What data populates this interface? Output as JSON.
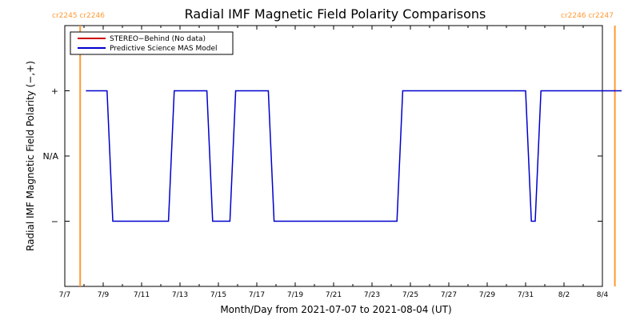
{
  "chart_data": {
    "type": "line",
    "title": "Radial IMF Magnetic Field Polarity Comparisons",
    "xlabel": "Month/Day from 2021-07-07 to 2021-08-04 (UT)",
    "ylabel": "Radial IMF Magnetic Field Polarity (−,+)",
    "x_tick_labels": [
      "7/7",
      "7/9",
      "7/11",
      "7/13",
      "7/15",
      "7/17",
      "7/19",
      "7/21",
      "7/23",
      "7/25",
      "7/27",
      "7/29",
      "7/31",
      "8/2",
      "8/4"
    ],
    "y_tick_labels": [
      "+",
      "N/A",
      "−"
    ],
    "legend": {
      "placement": "top-left",
      "entries": [
        {
          "label": "STEREO−Behind (No data)",
          "color": "#cc0000"
        },
        {
          "label": "Predictive Science MAS Model",
          "color": "#0000cc"
        }
      ]
    },
    "rotation_markers": [
      {
        "day": 0.8,
        "labels": [
          "cr2245",
          "cr2246"
        ]
      },
      {
        "day": 28.65,
        "labels": [
          "cr2246",
          "cr2247"
        ]
      }
    ],
    "x_start": "2021-07-07",
    "x_end": "2021-08-04",
    "ylim": [
      -2,
      2
    ],
    "series": [
      {
        "name": "Predictive Science MAS Model",
        "color": "#0000cc",
        "points": [
          [
            1.1,
            1
          ],
          [
            2.2,
            1
          ],
          [
            2.5,
            -1
          ],
          [
            5.4,
            -1
          ],
          [
            5.7,
            1
          ],
          [
            7.4,
            1
          ],
          [
            7.7,
            -1
          ],
          [
            8.6,
            -1
          ],
          [
            8.9,
            1
          ],
          [
            10.6,
            1
          ],
          [
            10.9,
            -1
          ],
          [
            17.3,
            -1
          ],
          [
            17.6,
            1
          ],
          [
            24.0,
            1
          ],
          [
            24.3,
            -1
          ],
          [
            24.5,
            -1
          ],
          [
            24.8,
            1
          ],
          [
            29.0,
            1
          ]
        ]
      }
    ],
    "colors": {
      "marker": "#ff9933",
      "axis": "#000000"
    }
  }
}
